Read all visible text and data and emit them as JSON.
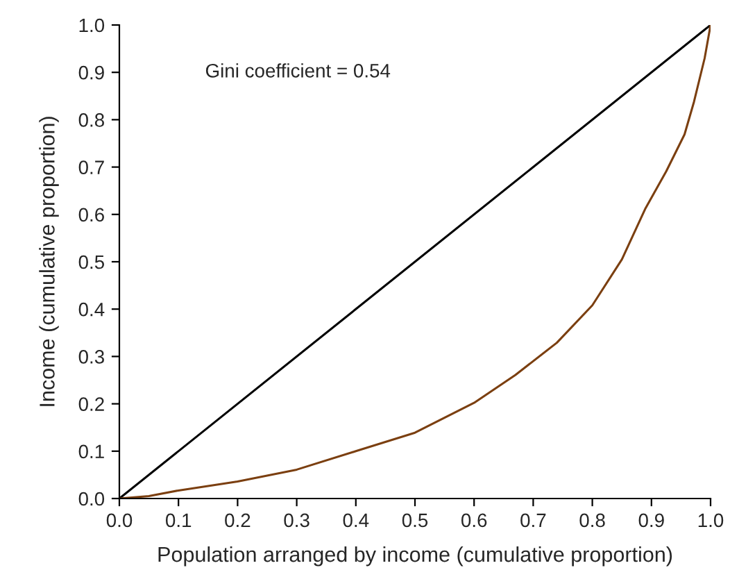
{
  "chart_data": {
    "type": "line",
    "xlabel": "Population arranged by income (cumulative proportion)",
    "ylabel": "Income (cumulative proportion)",
    "annotations": [
      "Gini coefficient = 0.54"
    ],
    "series": [
      {
        "color": "#000000",
        "x": [
          0,
          1
        ],
        "values": [
          0,
          1
        ]
      },
      {
        "color": "#7b3f10",
        "x": [
          0,
          0.05,
          0.1,
          0.2,
          0.3,
          0.4,
          0.5,
          0.6,
          0.67,
          0.74,
          0.8,
          0.85,
          0.89,
          0.925,
          0.956,
          0.972,
          0.99,
          1.0
        ],
        "values": [
          0,
          0.005,
          0.017,
          0.036,
          0.061,
          0.1,
          0.139,
          0.202,
          0.261,
          0.329,
          0.408,
          0.505,
          0.613,
          0.691,
          0.769,
          0.838,
          0.93,
          1.0
        ]
      }
    ],
    "xlim": [
      0,
      1
    ],
    "ylim": [
      0,
      1
    ],
    "xticks": [
      {
        "value": 0,
        "label": "0.0"
      },
      0.1,
      0.2,
      0.3,
      0.4,
      0.5,
      0.6,
      0.7,
      0.8,
      0.9,
      {
        "value": 1,
        "label": "1.0"
      }
    ],
    "yticks": [
      {
        "value": 0,
        "label": "0.0"
      },
      0.1,
      0.2,
      0.3,
      0.4,
      0.5,
      0.6,
      0.7,
      0.8,
      0.9,
      {
        "value": 1,
        "label": "1.0"
      }
    ],
    "grid": false,
    "marker": "none",
    "line_style": "solid"
  }
}
